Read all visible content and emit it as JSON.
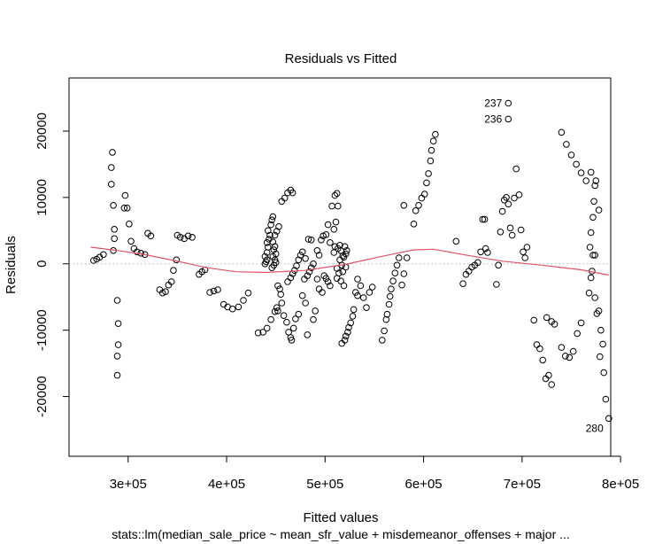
{
  "chart_data": {
    "type": "scatter",
    "title": "Residuals vs Fitted",
    "xlabel": "Fitted values",
    "ylabel": "Residuals",
    "subtitle": "stats::lm(median_sale_price ~ mean_sfr_value + misdemeanor_offenses + major ...",
    "xlim": [
      240000,
      790000
    ],
    "ylim": [
      -29000,
      28000
    ],
    "x_ticks": [
      {
        "value": 300000,
        "label": "3e+05"
      },
      {
        "value": 400000,
        "label": "4e+05"
      },
      {
        "value": 500000,
        "label": "5e+05"
      },
      {
        "value": 600000,
        "label": "6e+05"
      },
      {
        "value": 700000,
        "label": "7e+05"
      },
      {
        "value": 800000,
        "label": "8e+05"
      }
    ],
    "y_ticks": [
      {
        "value": -20000,
        "label": "-20000"
      },
      {
        "value": -10000,
        "label": "-10000"
      },
      {
        "value": 0,
        "label": "0"
      },
      {
        "value": 10000,
        "label": "10000"
      },
      {
        "value": 20000,
        "label": "20000"
      }
    ],
    "reference_line": {
      "y": 0,
      "style": "dotted",
      "color": "#b3b3b3"
    },
    "point_color": "#000000",
    "smooth_color": "#df536b",
    "points": [
      [
        265000,
        500
      ],
      [
        268000,
        700
      ],
      [
        271000,
        1000
      ],
      [
        275000,
        1400
      ],
      [
        284000,
        16800
      ],
      [
        283000,
        14500
      ],
      [
        283000,
        12000
      ],
      [
        285000,
        8800
      ],
      [
        286000,
        5200
      ],
      [
        286000,
        3800
      ],
      [
        285000,
        2000
      ],
      [
        289000,
        -5500
      ],
      [
        290000,
        -9000
      ],
      [
        290000,
        -12200
      ],
      [
        289000,
        -13900
      ],
      [
        289000,
        -16800
      ],
      [
        297000,
        10300
      ],
      [
        296000,
        8400
      ],
      [
        299000,
        8400
      ],
      [
        301000,
        6000
      ],
      [
        303000,
        3400
      ],
      [
        306000,
        2300
      ],
      [
        309000,
        1800
      ],
      [
        313000,
        1600
      ],
      [
        317000,
        1400
      ],
      [
        320000,
        4600
      ],
      [
        323000,
        4200
      ],
      [
        332000,
        -3900
      ],
      [
        335000,
        -4400
      ],
      [
        338000,
        -4200
      ],
      [
        341000,
        -3200
      ],
      [
        344000,
        -2700
      ],
      [
        346000,
        -1000
      ],
      [
        349000,
        600
      ],
      [
        350000,
        4300
      ],
      [
        353000,
        4000
      ],
      [
        357000,
        3800
      ],
      [
        361000,
        4200
      ],
      [
        365000,
        4000
      ],
      [
        372000,
        -1600
      ],
      [
        375000,
        -1200
      ],
      [
        378000,
        -900
      ],
      [
        383000,
        -4300
      ],
      [
        387000,
        -4100
      ],
      [
        391000,
        -3900
      ],
      [
        397000,
        -6100
      ],
      [
        401000,
        -6500
      ],
      [
        406000,
        -6800
      ],
      [
        412000,
        -6500
      ],
      [
        417000,
        -5500
      ],
      [
        422000,
        -4400
      ],
      [
        432000,
        -10400
      ],
      [
        437000,
        -10300
      ],
      [
        441000,
        -9700
      ],
      [
        445000,
        -8400
      ],
      [
        449000,
        -7200
      ],
      [
        451000,
        -6600
      ],
      [
        452000,
        -7100
      ],
      [
        439000,
        0
      ],
      [
        440000,
        300
      ],
      [
        441000,
        600
      ],
      [
        439000,
        1100
      ],
      [
        441000,
        1700
      ],
      [
        442000,
        2500
      ],
      [
        441000,
        3200
      ],
      [
        443000,
        3700
      ],
      [
        444000,
        4300
      ],
      [
        442000,
        5000
      ],
      [
        445000,
        5900
      ],
      [
        446000,
        6600
      ],
      [
        447000,
        7100
      ],
      [
        446000,
        -600
      ],
      [
        448000,
        -200
      ],
      [
        450000,
        200
      ],
      [
        449000,
        600
      ],
      [
        447000,
        1100
      ],
      [
        450000,
        1500
      ],
      [
        448000,
        2100
      ],
      [
        449000,
        2600
      ],
      [
        447000,
        3300
      ],
      [
        449000,
        4300
      ],
      [
        451000,
        4900
      ],
      [
        453000,
        5600
      ],
      [
        452000,
        -3300
      ],
      [
        454000,
        -3800
      ],
      [
        455000,
        -4600
      ],
      [
        456000,
        -5900
      ],
      [
        456000,
        9400
      ],
      [
        459000,
        9900
      ],
      [
        462000,
        10700
      ],
      [
        465000,
        11100
      ],
      [
        467000,
        10700
      ],
      [
        458000,
        -7800
      ],
      [
        461000,
        -8800
      ],
      [
        463000,
        -10300
      ],
      [
        465000,
        -11100
      ],
      [
        466000,
        -11500
      ],
      [
        468000,
        -9700
      ],
      [
        470000,
        -8300
      ],
      [
        473000,
        -7600
      ],
      [
        462000,
        -2700
      ],
      [
        465000,
        -2100
      ],
      [
        467000,
        -1500
      ],
      [
        469000,
        -1000
      ],
      [
        471000,
        -300
      ],
      [
        473000,
        600
      ],
      [
        475000,
        1300
      ],
      [
        477000,
        1800
      ],
      [
        479000,
        -2300
      ],
      [
        482000,
        -1800
      ],
      [
        484000,
        -1200
      ],
      [
        486000,
        -600
      ],
      [
        488000,
        0
      ],
      [
        480000,
        800
      ],
      [
        483000,
        3700
      ],
      [
        486000,
        3600
      ],
      [
        477000,
        -4800
      ],
      [
        480000,
        -5900
      ],
      [
        482000,
        -10700
      ],
      [
        490000,
        -7100
      ],
      [
        488000,
        -8400
      ],
      [
        492000,
        2000
      ],
      [
        494000,
        1300
      ],
      [
        496000,
        3600
      ],
      [
        498000,
        4200
      ],
      [
        501000,
        4400
      ],
      [
        503000,
        5900
      ],
      [
        505000,
        3200
      ],
      [
        499000,
        -1800
      ],
      [
        501000,
        -2200
      ],
      [
        503000,
        -2700
      ],
      [
        505000,
        -3300
      ],
      [
        497000,
        -4300
      ],
      [
        494000,
        -3800
      ],
      [
        492000,
        -2300
      ],
      [
        507000,
        8700
      ],
      [
        509000,
        5200
      ],
      [
        510000,
        10300
      ],
      [
        512000,
        10600
      ],
      [
        513000,
        8700
      ],
      [
        511000,
        6300
      ],
      [
        513000,
        2300
      ],
      [
        515000,
        2800
      ],
      [
        516000,
        2000
      ],
      [
        518000,
        1200
      ],
      [
        515000,
        600
      ],
      [
        517000,
        -200
      ],
      [
        510000,
        2600
      ],
      [
        509000,
        1700
      ],
      [
        512000,
        -700
      ],
      [
        514000,
        -1400
      ],
      [
        512000,
        -2200
      ],
      [
        516000,
        -2600
      ],
      [
        519000,
        -3300
      ],
      [
        517000,
        -12000
      ],
      [
        520000,
        -11500
      ],
      [
        521000,
        -10900
      ],
      [
        523000,
        -10300
      ],
      [
        524000,
        -9600
      ],
      [
        526000,
        -8900
      ],
      [
        528000,
        -7900
      ],
      [
        529000,
        -6900
      ],
      [
        531000,
        -4300
      ],
      [
        533000,
        -4800
      ],
      [
        519000,
        1000
      ],
      [
        521000,
        1500
      ],
      [
        522000,
        2000
      ],
      [
        520000,
        2600
      ],
      [
        518000,
        -1200
      ],
      [
        521000,
        -500
      ],
      [
        533000,
        -2300
      ],
      [
        536000,
        -3300
      ],
      [
        539000,
        -5100
      ],
      [
        542000,
        -6600
      ],
      [
        545000,
        -4300
      ],
      [
        548000,
        -3500
      ],
      [
        558000,
        -11500
      ],
      [
        560000,
        -10100
      ],
      [
        562000,
        -8400
      ],
      [
        563000,
        -7600
      ],
      [
        565000,
        -6100
      ],
      [
        566000,
        -4900
      ],
      [
        567000,
        -3800
      ],
      [
        569000,
        -2600
      ],
      [
        571000,
        -1400
      ],
      [
        573000,
        -200
      ],
      [
        575000,
        900
      ],
      [
        578000,
        -3200
      ],
      [
        580000,
        -1500
      ],
      [
        583000,
        900
      ],
      [
        580000,
        8800
      ],
      [
        590000,
        6000
      ],
      [
        592000,
        8000
      ],
      [
        595000,
        8800
      ],
      [
        598000,
        9900
      ],
      [
        601000,
        10500
      ],
      [
        603000,
        12200
      ],
      [
        605000,
        13600
      ],
      [
        607000,
        15500
      ],
      [
        608000,
        17100
      ],
      [
        610000,
        18500
      ],
      [
        612000,
        19500
      ],
      [
        633000,
        3400
      ],
      [
        640000,
        -3000
      ],
      [
        643000,
        -1600
      ],
      [
        646000,
        -1100
      ],
      [
        649000,
        -500
      ],
      [
        652000,
        -200
      ],
      [
        655000,
        200
      ],
      [
        658000,
        1800
      ],
      [
        660000,
        6700
      ],
      [
        662000,
        6700
      ],
      [
        663000,
        2300
      ],
      [
        665000,
        1700
      ],
      [
        674000,
        -3100
      ],
      [
        676000,
        -200
      ],
      [
        678000,
        4800
      ],
      [
        680000,
        7900
      ],
      [
        682000,
        9600
      ],
      [
        684000,
        10000
      ],
      [
        686000,
        9000
      ],
      [
        688000,
        5400
      ],
      [
        690000,
        4300
      ],
      [
        692000,
        9900
      ],
      [
        694000,
        14300
      ],
      [
        697000,
        10400
      ],
      [
        699000,
        5100
      ],
      [
        701000,
        1800
      ],
      [
        703000,
        900
      ],
      [
        705000,
        2500
      ],
      [
        686000,
        24200
      ],
      [
        686000,
        21800
      ],
      [
        712000,
        -8500
      ],
      [
        715000,
        -12200
      ],
      [
        718000,
        -12800
      ],
      [
        721000,
        -14500
      ],
      [
        724000,
        -17300
      ],
      [
        727000,
        -16800
      ],
      [
        730000,
        -18200
      ],
      [
        725000,
        -8100
      ],
      [
        730000,
        -8700
      ],
      [
        733000,
        -9100
      ],
      [
        740000,
        19800
      ],
      [
        745000,
        18000
      ],
      [
        750000,
        16400
      ],
      [
        755000,
        15000
      ],
      [
        760000,
        13700
      ],
      [
        765000,
        12500
      ],
      [
        770000,
        13800
      ],
      [
        774000,
        11800
      ],
      [
        778000,
        8100
      ],
      [
        740000,
        -12600
      ],
      [
        744000,
        -13900
      ],
      [
        748000,
        -14100
      ],
      [
        752000,
        -13200
      ],
      [
        756000,
        -10500
      ],
      [
        760000,
        -8900
      ],
      [
        768000,
        -4400
      ],
      [
        770000,
        -2100
      ],
      [
        771000,
        -1100
      ],
      [
        772000,
        1300
      ],
      [
        769000,
        2500
      ],
      [
        770000,
        4700
      ],
      [
        772000,
        7000
      ],
      [
        773000,
        9400
      ],
      [
        775000,
        12500
      ],
      [
        774000,
        1300
      ],
      [
        774000,
        -5100
      ],
      [
        776000,
        -7500
      ],
      [
        778000,
        -7100
      ],
      [
        780000,
        -10000
      ],
      [
        782000,
        -12100
      ],
      [
        779000,
        -14000
      ],
      [
        783000,
        -16400
      ],
      [
        785000,
        -20400
      ],
      [
        788000,
        -23300
      ]
    ],
    "smooth": [
      [
        262000,
        2500
      ],
      [
        290000,
        2000
      ],
      [
        320000,
        1300
      ],
      [
        350000,
        400
      ],
      [
        380000,
        -600
      ],
      [
        410000,
        -1200
      ],
      [
        440000,
        -1300
      ],
      [
        480000,
        -1000
      ],
      [
        520000,
        -100
      ],
      [
        560000,
        1200
      ],
      [
        590000,
        2100
      ],
      [
        610000,
        2200
      ],
      [
        640000,
        1400
      ],
      [
        680000,
        400
      ],
      [
        720000,
        -200
      ],
      [
        760000,
        -900
      ],
      [
        788000,
        -1700
      ]
    ],
    "point_labels": [
      {
        "text": "237",
        "x": 686000,
        "y": 24200,
        "side": "left"
      },
      {
        "text": "236",
        "x": 686000,
        "y": 21800,
        "side": "left"
      },
      {
        "text": "280",
        "x": 788000,
        "y": -23300,
        "side": "below-left"
      }
    ]
  }
}
